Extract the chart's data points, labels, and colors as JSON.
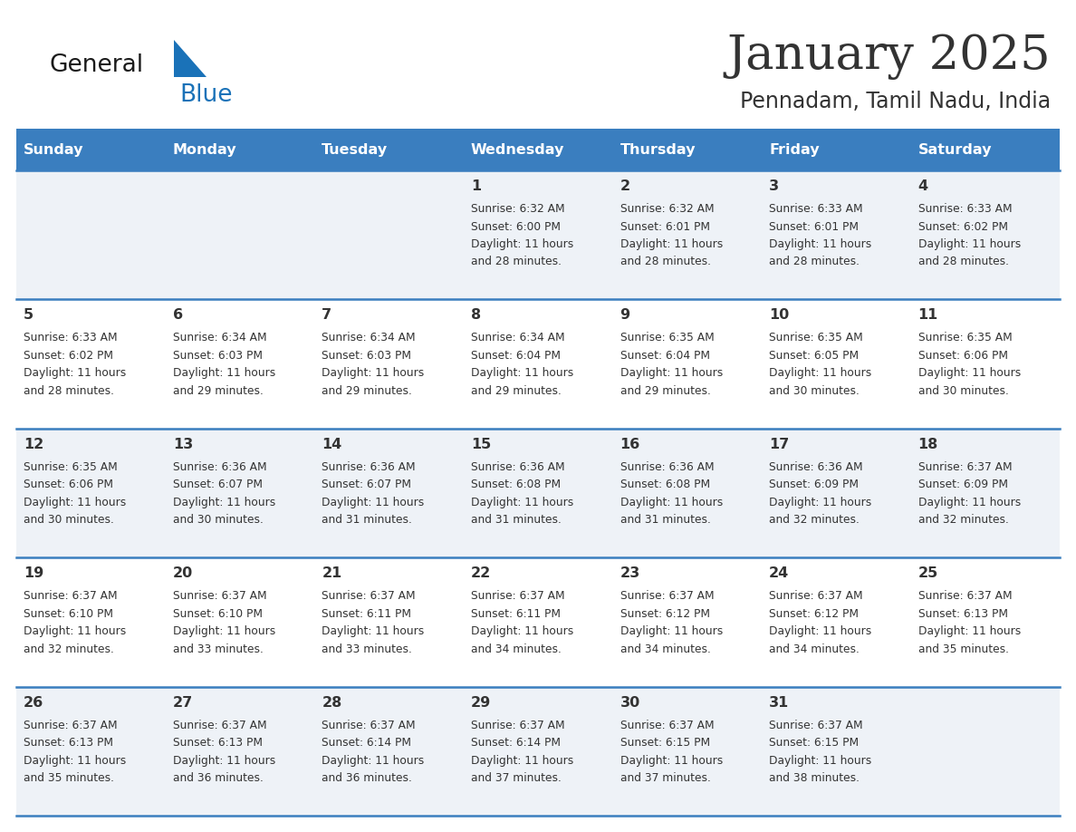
{
  "title": "January 2025",
  "subtitle": "Pennadam, Tamil Nadu, India",
  "header_bg": "#3a7ebf",
  "header_text": "#ffffff",
  "days_of_week": [
    "Sunday",
    "Monday",
    "Tuesday",
    "Wednesday",
    "Thursday",
    "Friday",
    "Saturday"
  ],
  "row_bg_even": "#eef2f7",
  "row_bg_odd": "#ffffff",
  "separator_color": "#3a7ebf",
  "text_color": "#333333",
  "number_color": "#333333",
  "logo_general_color": "#1a1a1a",
  "logo_blue_color": "#1a72b8",
  "calendar": [
    [
      {
        "day": null,
        "sunrise": null,
        "sunset": null,
        "daylight": null
      },
      {
        "day": null,
        "sunrise": null,
        "sunset": null,
        "daylight": null
      },
      {
        "day": null,
        "sunrise": null,
        "sunset": null,
        "daylight": null
      },
      {
        "day": 1,
        "sunrise": "6:32 AM",
        "sunset": "6:00 PM",
        "daylight": "11 hours and 28 minutes."
      },
      {
        "day": 2,
        "sunrise": "6:32 AM",
        "sunset": "6:01 PM",
        "daylight": "11 hours and 28 minutes."
      },
      {
        "day": 3,
        "sunrise": "6:33 AM",
        "sunset": "6:01 PM",
        "daylight": "11 hours and 28 minutes."
      },
      {
        "day": 4,
        "sunrise": "6:33 AM",
        "sunset": "6:02 PM",
        "daylight": "11 hours and 28 minutes."
      }
    ],
    [
      {
        "day": 5,
        "sunrise": "6:33 AM",
        "sunset": "6:02 PM",
        "daylight": "11 hours and 28 minutes."
      },
      {
        "day": 6,
        "sunrise": "6:34 AM",
        "sunset": "6:03 PM",
        "daylight": "11 hours and 29 minutes."
      },
      {
        "day": 7,
        "sunrise": "6:34 AM",
        "sunset": "6:03 PM",
        "daylight": "11 hours and 29 minutes."
      },
      {
        "day": 8,
        "sunrise": "6:34 AM",
        "sunset": "6:04 PM",
        "daylight": "11 hours and 29 minutes."
      },
      {
        "day": 9,
        "sunrise": "6:35 AM",
        "sunset": "6:04 PM",
        "daylight": "11 hours and 29 minutes."
      },
      {
        "day": 10,
        "sunrise": "6:35 AM",
        "sunset": "6:05 PM",
        "daylight": "11 hours and 30 minutes."
      },
      {
        "day": 11,
        "sunrise": "6:35 AM",
        "sunset": "6:06 PM",
        "daylight": "11 hours and 30 minutes."
      }
    ],
    [
      {
        "day": 12,
        "sunrise": "6:35 AM",
        "sunset": "6:06 PM",
        "daylight": "11 hours and 30 minutes."
      },
      {
        "day": 13,
        "sunrise": "6:36 AM",
        "sunset": "6:07 PM",
        "daylight": "11 hours and 30 minutes."
      },
      {
        "day": 14,
        "sunrise": "6:36 AM",
        "sunset": "6:07 PM",
        "daylight": "11 hours and 31 minutes."
      },
      {
        "day": 15,
        "sunrise": "6:36 AM",
        "sunset": "6:08 PM",
        "daylight": "11 hours and 31 minutes."
      },
      {
        "day": 16,
        "sunrise": "6:36 AM",
        "sunset": "6:08 PM",
        "daylight": "11 hours and 31 minutes."
      },
      {
        "day": 17,
        "sunrise": "6:36 AM",
        "sunset": "6:09 PM",
        "daylight": "11 hours and 32 minutes."
      },
      {
        "day": 18,
        "sunrise": "6:37 AM",
        "sunset": "6:09 PM",
        "daylight": "11 hours and 32 minutes."
      }
    ],
    [
      {
        "day": 19,
        "sunrise": "6:37 AM",
        "sunset": "6:10 PM",
        "daylight": "11 hours and 32 minutes."
      },
      {
        "day": 20,
        "sunrise": "6:37 AM",
        "sunset": "6:10 PM",
        "daylight": "11 hours and 33 minutes."
      },
      {
        "day": 21,
        "sunrise": "6:37 AM",
        "sunset": "6:11 PM",
        "daylight": "11 hours and 33 minutes."
      },
      {
        "day": 22,
        "sunrise": "6:37 AM",
        "sunset": "6:11 PM",
        "daylight": "11 hours and 34 minutes."
      },
      {
        "day": 23,
        "sunrise": "6:37 AM",
        "sunset": "6:12 PM",
        "daylight": "11 hours and 34 minutes."
      },
      {
        "day": 24,
        "sunrise": "6:37 AM",
        "sunset": "6:12 PM",
        "daylight": "11 hours and 34 minutes."
      },
      {
        "day": 25,
        "sunrise": "6:37 AM",
        "sunset": "6:13 PM",
        "daylight": "11 hours and 35 minutes."
      }
    ],
    [
      {
        "day": 26,
        "sunrise": "6:37 AM",
        "sunset": "6:13 PM",
        "daylight": "11 hours and 35 minutes."
      },
      {
        "day": 27,
        "sunrise": "6:37 AM",
        "sunset": "6:13 PM",
        "daylight": "11 hours and 36 minutes."
      },
      {
        "day": 28,
        "sunrise": "6:37 AM",
        "sunset": "6:14 PM",
        "daylight": "11 hours and 36 minutes."
      },
      {
        "day": 29,
        "sunrise": "6:37 AM",
        "sunset": "6:14 PM",
        "daylight": "11 hours and 37 minutes."
      },
      {
        "day": 30,
        "sunrise": "6:37 AM",
        "sunset": "6:15 PM",
        "daylight": "11 hours and 37 minutes."
      },
      {
        "day": 31,
        "sunrise": "6:37 AM",
        "sunset": "6:15 PM",
        "daylight": "11 hours and 38 minutes."
      },
      {
        "day": null,
        "sunrise": null,
        "sunset": null,
        "daylight": null
      }
    ]
  ]
}
